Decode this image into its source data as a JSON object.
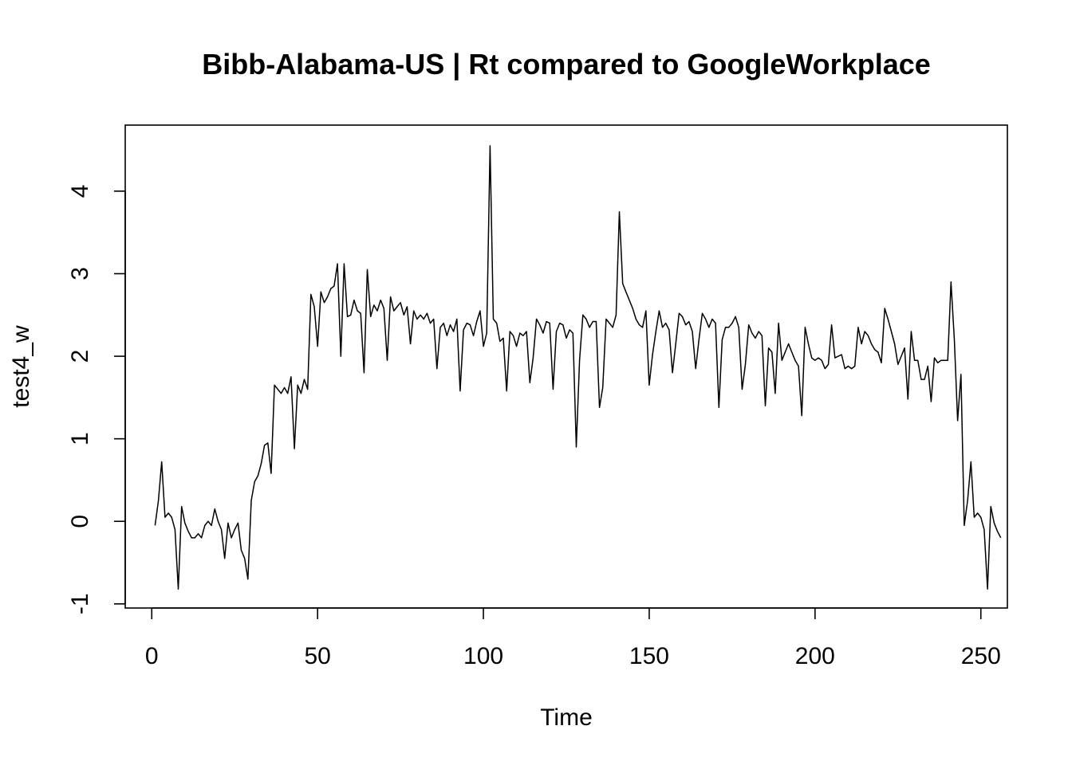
{
  "chart_data": {
    "type": "line",
    "title": "Bibb-Alabama-US | Rt compared to GoogleWorkplace",
    "xlabel": "Time",
    "ylabel": "test4_w",
    "xlim": [
      -8,
      258
    ],
    "ylim": [
      -1.05,
      4.8
    ],
    "xticks": [
      0,
      50,
      100,
      150,
      200,
      250
    ],
    "yticks": [
      -1,
      0,
      1,
      2,
      3,
      4
    ],
    "grid": false,
    "legend": "none",
    "line_color": "#000000",
    "series": [
      {
        "x_start": 1,
        "values": [
          -0.05,
          0.25,
          0.72,
          0.05,
          0.1,
          0.05,
          -0.1,
          -0.82,
          0.18,
          -0.02,
          -0.12,
          -0.2,
          -0.2,
          -0.15,
          -0.2,
          -0.05,
          0.0,
          -0.05,
          0.15,
          0.0,
          -0.1,
          -0.45,
          -0.02,
          -0.2,
          -0.1,
          -0.02,
          -0.35,
          -0.45,
          -0.7,
          0.25,
          0.48,
          0.55,
          0.7,
          0.92,
          0.95,
          0.58,
          1.65,
          1.6,
          1.55,
          1.62,
          1.55,
          1.75,
          0.88,
          1.65,
          1.55,
          1.72,
          1.6,
          2.75,
          2.6,
          2.12,
          2.78,
          2.65,
          2.72,
          2.82,
          2.85,
          3.12,
          2.0,
          3.12,
          2.48,
          2.5,
          2.68,
          2.55,
          2.52,
          1.8,
          3.05,
          2.48,
          2.62,
          2.55,
          2.68,
          2.58,
          1.95,
          2.72,
          2.55,
          2.6,
          2.65,
          2.5,
          2.6,
          2.15,
          2.55,
          2.45,
          2.5,
          2.45,
          2.52,
          2.4,
          2.45,
          1.85,
          2.35,
          2.4,
          2.25,
          2.38,
          2.3,
          2.45,
          1.58,
          2.32,
          2.4,
          2.38,
          2.25,
          2.42,
          2.55,
          2.12,
          2.28,
          4.55,
          2.45,
          2.4,
          2.18,
          2.22,
          1.58,
          2.3,
          2.25,
          2.12,
          2.28,
          2.25,
          2.3,
          1.68,
          1.98,
          2.45,
          2.38,
          2.28,
          2.42,
          2.4,
          1.6,
          2.3,
          2.4,
          2.38,
          2.22,
          2.32,
          2.28,
          0.9,
          1.95,
          2.5,
          2.45,
          2.35,
          2.42,
          2.42,
          1.38,
          1.62,
          2.45,
          2.4,
          2.35,
          2.5,
          3.75,
          2.88,
          2.78,
          2.68,
          2.58,
          2.45,
          2.38,
          2.35,
          2.55,
          1.65,
          2.02,
          2.3,
          2.55,
          2.35,
          2.4,
          2.32,
          1.8,
          2.15,
          2.52,
          2.48,
          2.38,
          2.42,
          2.3,
          1.85,
          2.2,
          2.52,
          2.45,
          2.35,
          2.45,
          2.4,
          1.38,
          2.2,
          2.35,
          2.35,
          2.4,
          2.48,
          2.35,
          1.6,
          1.9,
          2.38,
          2.28,
          2.22,
          2.3,
          2.25,
          1.4,
          2.1,
          2.05,
          1.55,
          2.4,
          1.95,
          2.05,
          2.15,
          2.05,
          1.95,
          1.88,
          1.28,
          2.35,
          2.15,
          1.98,
          1.95,
          1.98,
          1.95,
          1.85,
          1.9,
          2.38,
          1.98,
          2.0,
          2.02,
          1.85,
          1.88,
          1.85,
          1.88,
          2.35,
          2.15,
          2.3,
          2.25,
          2.15,
          2.08,
          2.05,
          1.92,
          2.58,
          2.45,
          2.3,
          2.15,
          1.9,
          2.0,
          2.1,
          1.48,
          2.3,
          1.95,
          1.95,
          1.72,
          1.72,
          1.88,
          1.45,
          1.98,
          1.92,
          1.95,
          1.95,
          1.95,
          2.9,
          2.2,
          1.22,
          1.78,
          -0.05,
          0.25,
          0.72,
          0.05,
          0.1,
          0.05,
          -0.1,
          -0.82,
          0.18,
          -0.02,
          -0.12,
          -0.2
        ]
      }
    ]
  }
}
